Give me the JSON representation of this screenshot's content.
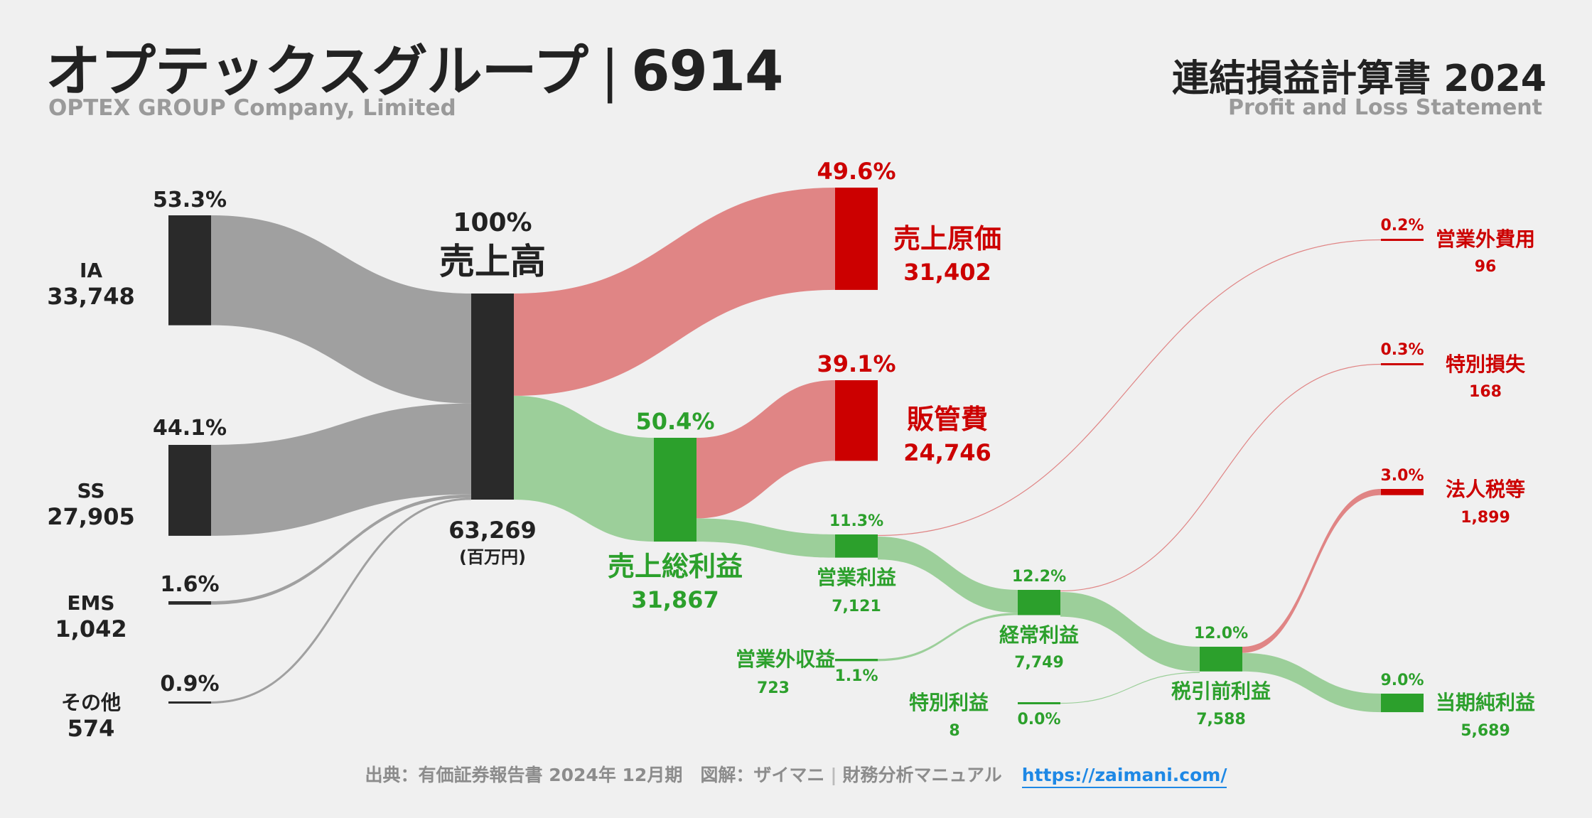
{
  "header": {
    "company": "オプテックスグループ",
    "ticker": "6914",
    "company_en": "OPTEX GROUP Company, Limited",
    "statement": "連結損益計算書 2024",
    "statement_en": "Profit and Loss Statement"
  },
  "footer": {
    "source": "出典：有価証券報告書 2024年 12月期",
    "credit_prefix": "図解：ザイマニ",
    "credit_site": "財務分析マニュアル",
    "url": "https://zaimani.com/"
  },
  "colors": {
    "neutral": "#2a2a2a",
    "neutral_flow": "#a0a0a0",
    "cost": "#cc0000",
    "cost_flow": "#e08585",
    "profit": "#2ca02c",
    "profit_flow": "#9ccf9a"
  },
  "chart_data": {
    "type": "sankey",
    "unit": "(百万円)",
    "nodes": [
      {
        "id": "ia",
        "label": "IA",
        "value": 33748,
        "value_text": "33,748",
        "pct": "53.3%",
        "kind": "neutral"
      },
      {
        "id": "ss",
        "label": "SS",
        "value": 27905,
        "value_text": "27,905",
        "pct": "44.1%",
        "kind": "neutral"
      },
      {
        "id": "ems",
        "label": "EMS",
        "value": 1042,
        "value_text": "1,042",
        "pct": "1.6%",
        "kind": "neutral"
      },
      {
        "id": "other",
        "label": "その他",
        "value": 574,
        "value_text": "574",
        "pct": "0.9%",
        "kind": "neutral"
      },
      {
        "id": "revenue",
        "label": "売上高",
        "value": 63269,
        "value_text": "63,269",
        "pct": "100%",
        "kind": "neutral"
      },
      {
        "id": "cogs",
        "label": "売上原価",
        "value": 31402,
        "value_text": "31,402",
        "pct": "49.6%",
        "kind": "cost"
      },
      {
        "id": "gross",
        "label": "売上総利益",
        "value": 31867,
        "value_text": "31,867",
        "pct": "50.4%",
        "kind": "profit"
      },
      {
        "id": "sga",
        "label": "販管費",
        "value": 24746,
        "value_text": "24,746",
        "pct": "39.1%",
        "kind": "cost"
      },
      {
        "id": "op",
        "label": "営業利益",
        "value": 7121,
        "value_text": "7,121",
        "pct": "11.3%",
        "kind": "profit"
      },
      {
        "id": "nonop_inc",
        "label": "営業外収益",
        "value": 723,
        "value_text": "723",
        "pct": "1.1%",
        "kind": "profit"
      },
      {
        "id": "nonop_exp",
        "label": "営業外費用",
        "value": 96,
        "value_text": "96",
        "pct": "0.2%",
        "kind": "cost"
      },
      {
        "id": "ordinary",
        "label": "経常利益",
        "value": 7749,
        "value_text": "7,749",
        "pct": "12.2%",
        "kind": "profit"
      },
      {
        "id": "ext_gain",
        "label": "特別利益",
        "value": 8,
        "value_text": "8",
        "pct": "0.0%",
        "kind": "profit"
      },
      {
        "id": "ext_loss",
        "label": "特別損失",
        "value": 168,
        "value_text": "168",
        "pct": "0.3%",
        "kind": "cost"
      },
      {
        "id": "pretax",
        "label": "税引前利益",
        "value": 7588,
        "value_text": "7,588",
        "pct": "12.0%",
        "kind": "profit"
      },
      {
        "id": "tax",
        "label": "法人税等",
        "value": 1899,
        "value_text": "1,899",
        "pct": "3.0%",
        "kind": "cost"
      },
      {
        "id": "net",
        "label": "当期純利益",
        "value": 5689,
        "value_text": "5,689",
        "pct": "9.0%",
        "kind": "profit"
      }
    ],
    "links": [
      {
        "source": "ia",
        "target": "revenue",
        "value": 33748
      },
      {
        "source": "ss",
        "target": "revenue",
        "value": 27905
      },
      {
        "source": "ems",
        "target": "revenue",
        "value": 1042
      },
      {
        "source": "other",
        "target": "revenue",
        "value": 574
      },
      {
        "source": "revenue",
        "target": "cogs",
        "value": 31402
      },
      {
        "source": "revenue",
        "target": "gross",
        "value": 31867
      },
      {
        "source": "gross",
        "target": "sga",
        "value": 24746
      },
      {
        "source": "gross",
        "target": "op",
        "value": 7121
      },
      {
        "source": "op",
        "target": "nonop_exp",
        "value": 96
      },
      {
        "source": "op",
        "target": "ordinary",
        "value": 7025
      },
      {
        "source": "nonop_inc",
        "target": "ordinary",
        "value": 723
      },
      {
        "source": "ordinary",
        "target": "ext_loss",
        "value": 168
      },
      {
        "source": "ordinary",
        "target": "pretax",
        "value": 7580
      },
      {
        "source": "ext_gain",
        "target": "pretax",
        "value": 8
      },
      {
        "source": "pretax",
        "target": "tax",
        "value": 1899
      },
      {
        "source": "pretax",
        "target": "net",
        "value": 5689
      }
    ]
  }
}
